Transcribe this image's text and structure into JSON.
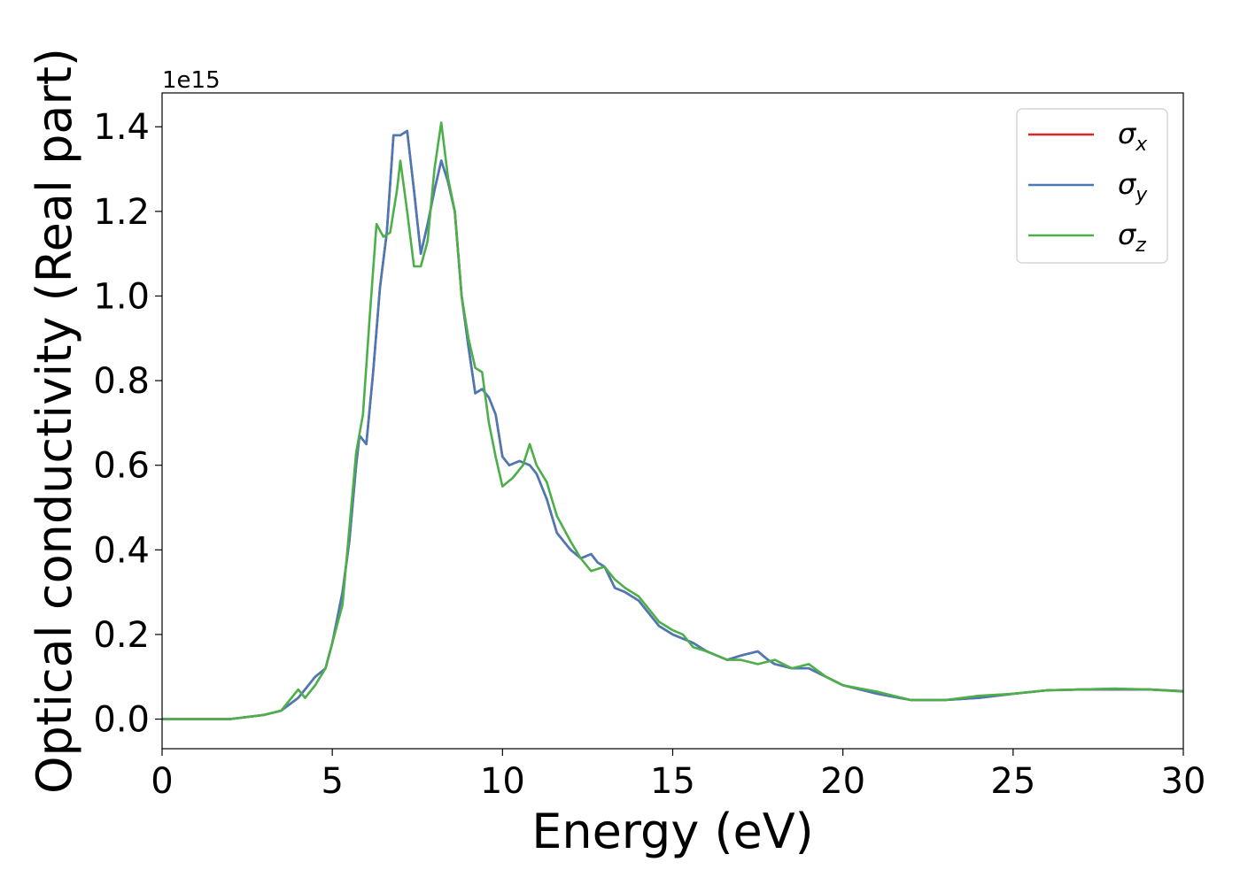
{
  "chart_data": {
    "type": "line",
    "xlabel": "Energy (eV)",
    "ylabel": "Optical conductivity (Real part)",
    "y_offset_label": "1e15",
    "y_scale": 1000000000000000.0,
    "xlim": [
      0,
      30
    ],
    "ylim": [
      -0.07,
      1.48
    ],
    "x_ticks": [
      0,
      5,
      10,
      15,
      20,
      25,
      30
    ],
    "x_tick_labels": [
      "0",
      "5",
      "10",
      "15",
      "20",
      "25",
      "30"
    ],
    "y_ticks": [
      0.0,
      0.2,
      0.4,
      0.6,
      0.8,
      1.0,
      1.2,
      1.4
    ],
    "y_tick_labels": [
      "0.0",
      "0.2",
      "0.4",
      "0.6",
      "0.8",
      "1.0",
      "1.2",
      "1.4"
    ],
    "grid": false,
    "legend_position": "top-right",
    "series": [
      {
        "name": "σx",
        "symbol": "σ",
        "subscript": "x",
        "color": "#d62728",
        "x": [
          0,
          1,
          2,
          3,
          3.5,
          4,
          4.2,
          4.5,
          4.8,
          5,
          5.3,
          5.5,
          5.7,
          5.8,
          6,
          6.2,
          6.4,
          6.6,
          6.8,
          7,
          7.2,
          7.4,
          7.6,
          7.8,
          8,
          8.2,
          8.4,
          8.6,
          8.8,
          9,
          9.2,
          9.4,
          9.6,
          9.8,
          10,
          10.2,
          10.5,
          10.8,
          11,
          11.3,
          11.6,
          12,
          12.3,
          12.6,
          12.8,
          13,
          13.3,
          13.6,
          14,
          14.3,
          14.6,
          15,
          15.3,
          15.6,
          16,
          16.3,
          16.6,
          17,
          17.5,
          17.8,
          18,
          18.5,
          19,
          19.5,
          20,
          21,
          22,
          23,
          24,
          25,
          26,
          27,
          28,
          29,
          30
        ],
        "values": [
          0,
          0,
          0,
          0.01,
          0.02,
          0.05,
          0.07,
          0.1,
          0.12,
          0.18,
          0.3,
          0.42,
          0.6,
          0.67,
          0.65,
          0.82,
          1.02,
          1.15,
          1.38,
          1.38,
          1.39,
          1.25,
          1.1,
          1.17,
          1.25,
          1.32,
          1.27,
          1.2,
          1.0,
          0.88,
          0.77,
          0.78,
          0.76,
          0.72,
          0.62,
          0.6,
          0.61,
          0.6,
          0.58,
          0.52,
          0.44,
          0.4,
          0.38,
          0.39,
          0.37,
          0.36,
          0.31,
          0.3,
          0.28,
          0.25,
          0.22,
          0.2,
          0.19,
          0.18,
          0.16,
          0.15,
          0.14,
          0.15,
          0.16,
          0.14,
          0.13,
          0.12,
          0.12,
          0.1,
          0.08,
          0.06,
          0.045,
          0.045,
          0.05,
          0.06,
          0.068,
          0.07,
          0.07,
          0.07,
          0.066
        ]
      },
      {
        "name": "σy",
        "symbol": "σ",
        "subscript": "y",
        "color": "#4a7ab5",
        "x": [
          0,
          1,
          2,
          3,
          3.5,
          4,
          4.2,
          4.5,
          4.8,
          5,
          5.3,
          5.5,
          5.7,
          5.8,
          6,
          6.2,
          6.4,
          6.6,
          6.8,
          7,
          7.2,
          7.4,
          7.6,
          7.8,
          8,
          8.2,
          8.4,
          8.6,
          8.8,
          9,
          9.2,
          9.4,
          9.6,
          9.8,
          10,
          10.2,
          10.5,
          10.8,
          11,
          11.3,
          11.6,
          12,
          12.3,
          12.6,
          12.8,
          13,
          13.3,
          13.6,
          14,
          14.3,
          14.6,
          15,
          15.3,
          15.6,
          16,
          16.3,
          16.6,
          17,
          17.5,
          17.8,
          18,
          18.5,
          19,
          19.5,
          20,
          21,
          22,
          23,
          24,
          25,
          26,
          27,
          28,
          29,
          30
        ],
        "values": [
          0,
          0,
          0,
          0.01,
          0.02,
          0.05,
          0.07,
          0.1,
          0.12,
          0.18,
          0.3,
          0.42,
          0.6,
          0.67,
          0.65,
          0.82,
          1.02,
          1.15,
          1.38,
          1.38,
          1.39,
          1.25,
          1.1,
          1.17,
          1.25,
          1.32,
          1.27,
          1.2,
          1.0,
          0.88,
          0.77,
          0.78,
          0.76,
          0.72,
          0.62,
          0.6,
          0.61,
          0.6,
          0.58,
          0.52,
          0.44,
          0.4,
          0.38,
          0.39,
          0.37,
          0.36,
          0.31,
          0.3,
          0.28,
          0.25,
          0.22,
          0.2,
          0.19,
          0.18,
          0.16,
          0.15,
          0.14,
          0.15,
          0.16,
          0.14,
          0.13,
          0.12,
          0.12,
          0.1,
          0.08,
          0.06,
          0.045,
          0.045,
          0.05,
          0.06,
          0.068,
          0.07,
          0.07,
          0.07,
          0.066
        ]
      },
      {
        "name": "σz",
        "symbol": "σ",
        "subscript": "z",
        "color": "#4daf4a",
        "x": [
          0,
          1,
          2,
          3,
          3.5,
          4,
          4.2,
          4.5,
          4.8,
          5,
          5.3,
          5.5,
          5.7,
          5.9,
          6.1,
          6.3,
          6.5,
          6.7,
          6.9,
          7,
          7.2,
          7.4,
          7.6,
          7.8,
          8,
          8.2,
          8.4,
          8.6,
          8.8,
          9,
          9.2,
          9.4,
          9.6,
          9.8,
          10,
          10.3,
          10.6,
          10.8,
          11,
          11.3,
          11.6,
          12,
          12.3,
          12.6,
          13,
          13.3,
          13.6,
          14,
          14.3,
          14.6,
          15,
          15.3,
          15.6,
          16,
          16.3,
          16.6,
          17,
          17.5,
          18,
          18.5,
          19,
          19.5,
          20,
          21,
          22,
          23,
          24,
          25,
          26,
          27,
          28,
          29,
          30
        ],
        "values": [
          0,
          0,
          0,
          0.01,
          0.02,
          0.07,
          0.05,
          0.08,
          0.12,
          0.18,
          0.27,
          0.45,
          0.63,
          0.72,
          0.95,
          1.17,
          1.14,
          1.15,
          1.25,
          1.32,
          1.2,
          1.07,
          1.07,
          1.13,
          1.3,
          1.41,
          1.28,
          1.2,
          1.0,
          0.9,
          0.83,
          0.82,
          0.7,
          0.62,
          0.55,
          0.57,
          0.6,
          0.65,
          0.6,
          0.56,
          0.48,
          0.42,
          0.38,
          0.35,
          0.36,
          0.33,
          0.31,
          0.29,
          0.26,
          0.23,
          0.21,
          0.2,
          0.17,
          0.16,
          0.15,
          0.14,
          0.14,
          0.13,
          0.14,
          0.12,
          0.13,
          0.1,
          0.08,
          0.065,
          0.045,
          0.045,
          0.055,
          0.06,
          0.068,
          0.07,
          0.072,
          0.07,
          0.065
        ]
      }
    ]
  }
}
